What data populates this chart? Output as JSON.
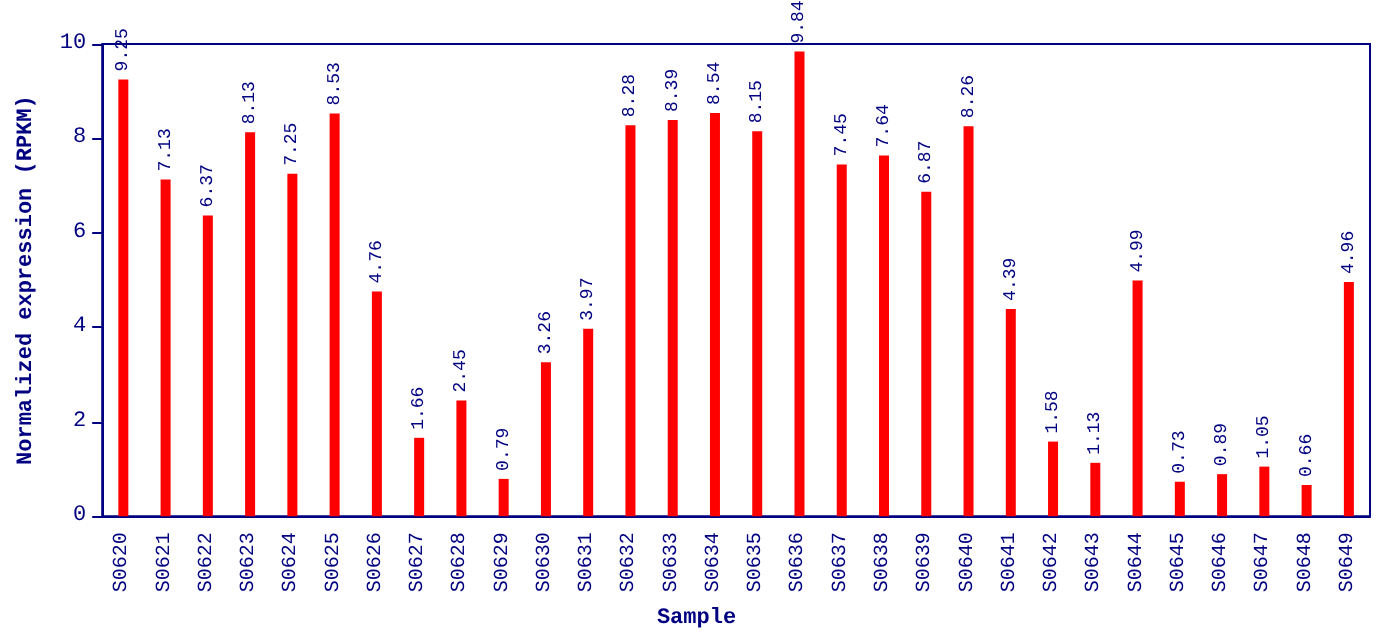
{
  "chart_data": {
    "type": "bar",
    "xlabel": "Sample",
    "ylabel": "Normalized expression (RPKM)",
    "categories": [
      "S0620",
      "S0621",
      "S0622",
      "S0623",
      "S0624",
      "S0625",
      "S0626",
      "S0627",
      "S0628",
      "S0629",
      "S0630",
      "S0631",
      "S0632",
      "S0633",
      "S0634",
      "S0635",
      "S0636",
      "S0637",
      "S0638",
      "S0639",
      "S0640",
      "S0641",
      "S0642",
      "S0643",
      "S0644",
      "S0645",
      "S0646",
      "S0647",
      "S0648",
      "S0649"
    ],
    "values": [
      9.25,
      7.13,
      6.37,
      8.13,
      7.25,
      8.53,
      4.76,
      1.66,
      2.45,
      0.79,
      3.26,
      3.97,
      8.28,
      8.39,
      8.54,
      8.15,
      9.84,
      7.45,
      7.64,
      6.87,
      8.26,
      4.39,
      1.58,
      1.13,
      4.99,
      0.73,
      0.89,
      1.05,
      0.66,
      4.96
    ],
    "color": "#ff0000",
    "ylim": [
      0,
      10
    ],
    "yticks": [
      0,
      2,
      4,
      6,
      8,
      10
    ],
    "data_labels": true,
    "grid": false
  }
}
